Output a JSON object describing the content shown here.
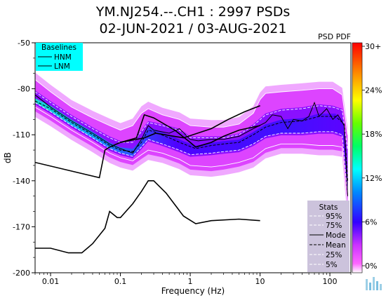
{
  "title_line1": "YM.NJ254.--.CH1 : 2997 PSDs",
  "title_line2": "02-JUN-2021 / 03-AUG-2021",
  "chart_data": {
    "type": "heatmap",
    "xlabel": "Frequency (Hz)",
    "ylabel": "dB",
    "xscale": "log",
    "xlim": [
      0.006,
      200
    ],
    "ylim": [
      -200,
      -50
    ],
    "xticks": [
      {
        "value": 0.01,
        "label": "0.01"
      },
      {
        "value": 0.1,
        "label": "0.1"
      },
      {
        "value": 1,
        "label": "1"
      },
      {
        "value": 10,
        "label": "10"
      },
      {
        "value": 100,
        "label": "100"
      }
    ],
    "yticks": [
      {
        "value": -50,
        "label": "-50"
      },
      {
        "value": -80,
        "label": "-80"
      },
      {
        "value": -110,
        "label": "-110"
      },
      {
        "value": -140,
        "label": "-140"
      },
      {
        "value": -170,
        "label": "-170"
      },
      {
        "value": -200,
        "label": "-200"
      }
    ],
    "colorbar": {
      "label": "PSD PDF",
      "ticks": [
        "30+",
        "24%",
        "18%",
        "12%",
        "6%",
        "0%"
      ]
    },
    "baselines": {
      "title": "Baselines",
      "items": [
        "HNM",
        "LNM"
      ],
      "background": "#00ffff"
    },
    "stats": {
      "title": "Stats",
      "items": [
        "95%",
        "75%",
        "Mode",
        "Mean",
        "25%",
        "5%"
      ],
      "background": "#ccc3dc"
    },
    "series": [
      {
        "name": "HNM",
        "points": [
          [
            0.1,
            -115
          ],
          [
            0.22,
            -112
          ],
          [
            0.32,
            -109
          ],
          [
            0.8,
            -112
          ],
          [
            2,
            -106
          ],
          [
            3.5,
            -100
          ],
          [
            6,
            -95
          ],
          [
            10,
            -91
          ]
        ]
      },
      {
        "name": "LNM",
        "points": [
          [
            0.006,
            -128
          ],
          [
            0.05,
            -138
          ],
          [
            0.06,
            -120
          ],
          [
            0.07,
            -118
          ],
          [
            0.1,
            -115
          ],
          [
            0.17,
            -112
          ],
          [
            0.22,
            -97
          ],
          [
            0.3,
            -99
          ],
          [
            0.6,
            -107
          ],
          [
            1,
            -115
          ],
          [
            1.2,
            -118
          ],
          [
            2,
            -115
          ],
          [
            3,
            -111
          ],
          [
            5,
            -107
          ],
          [
            10,
            -104
          ]
        ]
      },
      {
        "name": "LNM-lower",
        "points": [
          [
            0.006,
            -184
          ],
          [
            0.01,
            -184
          ],
          [
            0.018,
            -187
          ],
          [
            0.028,
            -187
          ],
          [
            0.04,
            -181
          ],
          [
            0.06,
            -171
          ],
          [
            0.07,
            -160
          ],
          [
            0.09,
            -164
          ],
          [
            0.1,
            -164
          ],
          [
            0.15,
            -155
          ],
          [
            0.2,
            -147
          ],
          [
            0.25,
            -140
          ],
          [
            0.3,
            -140
          ],
          [
            0.45,
            -148
          ],
          [
            0.8,
            -163
          ],
          [
            1.2,
            -168
          ],
          [
            2,
            -166
          ],
          [
            5,
            -165
          ],
          [
            10,
            -166
          ]
        ]
      },
      {
        "name": "Mode",
        "points": [
          [
            0.006,
            -84
          ],
          [
            0.01,
            -92
          ],
          [
            0.02,
            -101
          ],
          [
            0.04,
            -109
          ],
          [
            0.07,
            -116
          ],
          [
            0.1,
            -119
          ],
          [
            0.15,
            -122
          ],
          [
            0.2,
            -113
          ],
          [
            0.25,
            -104
          ],
          [
            0.3,
            -107
          ],
          [
            0.5,
            -109
          ],
          [
            0.7,
            -106
          ],
          [
            1,
            -113
          ],
          [
            1.3,
            -114
          ],
          [
            2,
            -113
          ],
          [
            3,
            -113
          ],
          [
            5,
            -111
          ],
          [
            8,
            -106
          ],
          [
            12,
            -102
          ],
          [
            15,
            -97
          ],
          [
            20,
            -98
          ],
          [
            25,
            -106
          ],
          [
            30,
            -100
          ],
          [
            40,
            -101
          ],
          [
            50,
            -98
          ],
          [
            60,
            -89
          ],
          [
            70,
            -98
          ],
          [
            90,
            -93
          ],
          [
            110,
            -100
          ],
          [
            130,
            -97
          ],
          [
            160,
            -104
          ],
          [
            180,
            -150
          ]
        ]
      },
      {
        "name": "Mean",
        "points": [
          [
            0.006,
            -88
          ],
          [
            0.01,
            -93
          ],
          [
            0.02,
            -102
          ],
          [
            0.04,
            -110
          ],
          [
            0.07,
            -117
          ],
          [
            0.1,
            -120
          ],
          [
            0.15,
            -121
          ],
          [
            0.2,
            -115
          ],
          [
            0.25,
            -107
          ],
          [
            0.3,
            -108
          ],
          [
            0.5,
            -112
          ],
          [
            0.8,
            -116
          ],
          [
            1.2,
            -119
          ],
          [
            2,
            -117
          ],
          [
            3,
            -116
          ],
          [
            5,
            -115
          ],
          [
            8,
            -110
          ],
          [
            12,
            -105
          ],
          [
            20,
            -102
          ],
          [
            40,
            -101
          ],
          [
            70,
            -98
          ],
          [
            120,
            -98
          ],
          [
            160,
            -103
          ],
          [
            180,
            -140
          ]
        ]
      },
      {
        "name": "95%",
        "points": [
          [
            0.006,
            -74
          ],
          [
            0.01,
            -82
          ],
          [
            0.02,
            -92
          ],
          [
            0.04,
            -99
          ],
          [
            0.07,
            -104
          ],
          [
            0.1,
            -107
          ],
          [
            0.15,
            -104
          ],
          [
            0.2,
            -96
          ],
          [
            0.25,
            -93
          ],
          [
            0.4,
            -97
          ],
          [
            0.7,
            -100
          ],
          [
            1,
            -104
          ],
          [
            2,
            -105
          ],
          [
            3,
            -105
          ],
          [
            5,
            -103
          ],
          [
            8,
            -96
          ],
          [
            10,
            -87
          ],
          [
            12,
            -83
          ],
          [
            20,
            -82
          ],
          [
            40,
            -81
          ],
          [
            70,
            -80
          ],
          [
            110,
            -80
          ],
          [
            150,
            -84
          ],
          [
            180,
            -110
          ]
        ]
      },
      {
        "name": "75%",
        "points": [
          [
            0.006,
            -82
          ],
          [
            0.01,
            -89
          ],
          [
            0.02,
            -98
          ],
          [
            0.04,
            -106
          ],
          [
            0.07,
            -112
          ],
          [
            0.1,
            -115
          ],
          [
            0.15,
            -115
          ],
          [
            0.2,
            -108
          ],
          [
            0.25,
            -102
          ],
          [
            0.4,
            -104
          ],
          [
            0.7,
            -107
          ],
          [
            1,
            -112
          ],
          [
            2,
            -112
          ],
          [
            3,
            -112
          ],
          [
            5,
            -110
          ],
          [
            8,
            -104
          ],
          [
            12,
            -97
          ],
          [
            20,
            -94
          ],
          [
            40,
            -93
          ],
          [
            70,
            -91
          ],
          [
            110,
            -92
          ],
          [
            150,
            -94
          ],
          [
            180,
            -120
          ]
        ]
      },
      {
        "name": "25%",
        "points": [
          [
            0.006,
            -89
          ],
          [
            0.01,
            -95
          ],
          [
            0.02,
            -104
          ],
          [
            0.04,
            -112
          ],
          [
            0.07,
            -119
          ],
          [
            0.1,
            -122
          ],
          [
            0.15,
            -124
          ],
          [
            0.2,
            -118
          ],
          [
            0.25,
            -113
          ],
          [
            0.4,
            -116
          ],
          [
            0.7,
            -120
          ],
          [
            1,
            -123
          ],
          [
            2,
            -122
          ],
          [
            3,
            -121
          ],
          [
            5,
            -120
          ],
          [
            8,
            -116
          ],
          [
            12,
            -111
          ],
          [
            20,
            -109
          ],
          [
            40,
            -109
          ],
          [
            70,
            -108
          ],
          [
            110,
            -108
          ],
          [
            150,
            -110
          ],
          [
            180,
            -150
          ]
        ]
      },
      {
        "name": "5%",
        "points": [
          [
            0.006,
            -92
          ],
          [
            0.01,
            -98
          ],
          [
            0.02,
            -107
          ],
          [
            0.04,
            -115
          ],
          [
            0.07,
            -122
          ],
          [
            0.1,
            -125
          ],
          [
            0.15,
            -127
          ],
          [
            0.2,
            -123
          ],
          [
            0.25,
            -120
          ],
          [
            0.4,
            -122
          ],
          [
            0.7,
            -126
          ],
          [
            1,
            -130
          ],
          [
            2,
            -131
          ],
          [
            3,
            -130
          ],
          [
            5,
            -128
          ],
          [
            8,
            -125
          ],
          [
            12,
            -119
          ],
          [
            20,
            -116
          ],
          [
            40,
            -116
          ],
          [
            70,
            -117
          ],
          [
            110,
            -117
          ],
          [
            150,
            -118
          ],
          [
            180,
            -160
          ]
        ]
      }
    ]
  }
}
